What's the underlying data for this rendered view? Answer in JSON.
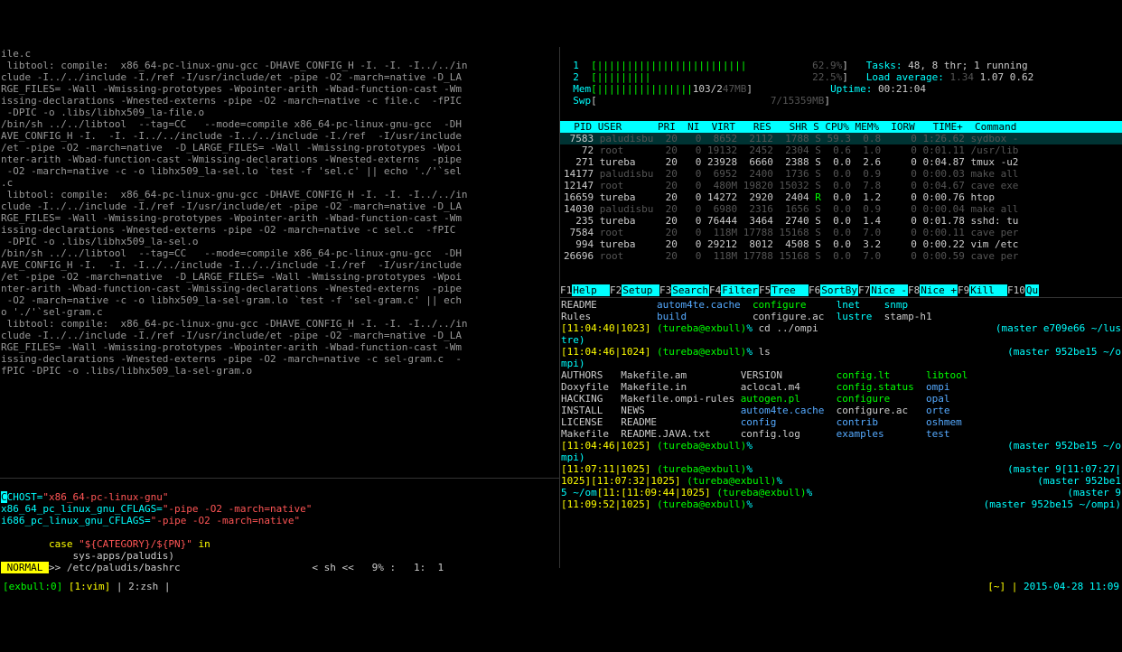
{
  "compile_output": "ile.c\n libtool: compile:  x86_64-pc-linux-gnu-gcc -DHAVE_CONFIG_H -I. -I. -I../../in\nclude -I../../include -I./ref -I/usr/include/et -pipe -O2 -march=native -D_LA\nRGE_FILES= -Wall -Wmissing-prototypes -Wpointer-arith -Wbad-function-cast -Wm\nissing-declarations -Wnested-externs -pipe -O2 -march=native -c file.c  -fPIC\n -DPIC -o .libs/libhx509_la-file.o\n/bin/sh ../../libtool  --tag=CC   --mode=compile x86_64-pc-linux-gnu-gcc  -DH\nAVE_CONFIG_H -I.  -I. -I../../include -I../../include -I./ref  -I/usr/include\n/et -pipe -O2 -march=native  -D_LARGE_FILES= -Wall -Wmissing-prototypes -Wpoi\nnter-arith -Wbad-function-cast -Wmissing-declarations -Wnested-externs  -pipe\n -O2 -march=native -c -o libhx509_la-sel.lo `test -f 'sel.c' || echo './'`sel\n.c\n libtool: compile:  x86_64-pc-linux-gnu-gcc -DHAVE_CONFIG_H -I. -I. -I../../in\nclude -I../../include -I./ref -I/usr/include/et -pipe -O2 -march=native -D_LA\nRGE_FILES= -Wall -Wmissing-prototypes -Wpointer-arith -Wbad-function-cast -Wm\nissing-declarations -Wnested-externs -pipe -O2 -march=native -c sel.c  -fPIC\n -DPIC -o .libs/libhx509_la-sel.o\n/bin/sh ../../libtool  --tag=CC   --mode=compile x86_64-pc-linux-gnu-gcc  -DH\nAVE_CONFIG_H -I.  -I. -I../../include -I../../include -I./ref  -I/usr/include\n/et -pipe -O2 -march=native  -D_LARGE_FILES= -Wall -Wmissing-prototypes -Wpoi\nnter-arith -Wbad-function-cast -Wmissing-declarations -Wnested-externs  -pipe\n -O2 -march=native -c -o libhx509_la-sel-gram.lo `test -f 'sel-gram.c' || ech\no './'`sel-gram.c\n libtool: compile:  x86_64-pc-linux-gnu-gcc -DHAVE_CONFIG_H -I. -I. -I../../in\nclude -I../../include -I./ref -I/usr/include/et -pipe -O2 -march=native -D_LA\nRGE_FILES= -Wall -Wmissing-prototypes -Wpointer-arith -Wbad-function-cast -Wm\nissing-declarations -Wnested-externs -pipe -O2 -march=native -c sel-gram.c  -\nfPIC -DPIC -o .libs/libhx509_la-sel-gram.o",
  "editor": {
    "line1_key": "CHOST=",
    "line1_val": "\"x86_64-pc-linux-gnu\"",
    "line2_key": "x86_64_pc_linux_gnu_CFLAGS=",
    "line2_val": "\"-pipe -O2 -march=native\"",
    "line3_key": "i686_pc_linux_gnu_CFLAGS=",
    "line3_val": "\"-pipe -O2 -march=native\"",
    "case1": "        case ",
    "case1_val": "\"${CATEGORY}/${PN}\"",
    "case1_in": " in",
    "case2": "            sys-apps/paludis)",
    "status_mode": " NORMAL ",
    "status_file": ">> /etc/paludis/bashrc",
    "status_right": "< sh <<   9% :   1:  1 "
  },
  "htop": {
    "cpu1_label": "  1  ",
    "cpu1_bar": "[|||||||||||||||||||||||||           ",
    "cpu1_pct": "62.9%",
    "cpu1_end": "]",
    "cpu2_label": "  2  ",
    "cpu2_bar": "[|||||||||                           ",
    "cpu2_pct": "22.5%",
    "cpu2_end": "]",
    "mem_label": "  Mem",
    "mem_bar": "[||||||||||||||||",
    "mem_val": "103/2",
    "mem_total": "47MB",
    "mem_end": "]",
    "swp_label": "  Swp",
    "swp_bar": "[                             ",
    "swp_val": "7/15359MB",
    "swp_end": "]",
    "tasks_lbl": "Tasks: ",
    "tasks_val": "48, 8 thr; 1 running",
    "load_lbl": "Load average: ",
    "load_val1": "1.34",
    "load_val2": " 1.07 0.62",
    "uptime_lbl": "Uptime: ",
    "uptime_val": "00:21:04",
    "header": "  PID USER      PRI  NI  VIRT   RES   SHR S CPU% MEM%  IORW   TIME+  Command ",
    "rows": [
      {
        "hi": true,
        "pid": " 7583",
        "user": " paludisbu",
        "pri": "  20",
        "ni": "   0",
        "virt": "  8652",
        "res": "  2112",
        "shr": "  1788 ",
        "s": "S",
        "cpu": " 59.3",
        "mem": "  0.8",
        "io": "     0",
        "time": " 1:26.62 ",
        "cmd": "sydbox -"
      },
      {
        "pid": "   72",
        "user": " root     ",
        "pri": "  20",
        "ni": "   0",
        "virt": " 19132",
        "res": "  2452",
        "shr": "  2304 ",
        "s": "S",
        "cpu": "  0.6",
        "mem": "  1.0",
        "io": "     0",
        "time": " 0:01.11 ",
        "cmd": "/usr/lib"
      },
      {
        "pid": "  271",
        "user": " tureba   ",
        "pri": "  20",
        "ni": "   0",
        "virt": " 23928",
        "res": "  6660",
        "shr": "  2388 ",
        "s": "S",
        "cpu": "  0.0",
        "mem": "  2.6",
        "io": "     0",
        "time": " 0:04.87 ",
        "cmd": "tmux -u2"
      },
      {
        "pid": "14177",
        "user": " paludisbu",
        "pri": "  20",
        "ni": "   0",
        "virt": "  6952",
        "res": "  2400",
        "shr": "  1736 ",
        "s": "S",
        "cpu": "  0.0",
        "mem": "  0.9",
        "io": "     0",
        "time": " 0:00.03 ",
        "cmd": "make all"
      },
      {
        "pid": "12147",
        "user": " root     ",
        "pri": "  20",
        "ni": "   0",
        "virt": "  480M",
        "res": " 19820",
        "shr": " 15032 ",
        "s": "S",
        "cpu": "  0.0",
        "mem": "  7.8",
        "io": "     0",
        "time": " 0:04.67 ",
        "cmd": "cave exe"
      },
      {
        "pid": "16659",
        "user": " tureba   ",
        "pri": "  20",
        "ni": "   0",
        "virt": " 14272",
        "res": "  2920",
        "shr": "  2404 ",
        "s": "R",
        "cpu": "  0.0",
        "mem": "  1.2",
        "io": "     0",
        "time": " 0:00.76 ",
        "cmd": "htop"
      },
      {
        "pid": "14030",
        "user": " paludisbu",
        "pri": "  20",
        "ni": "   0",
        "virt": "  6980",
        "res": "  2316",
        "shr": "  1656 ",
        "s": "S",
        "cpu": "  0.0",
        "mem": "  0.9",
        "io": "     0",
        "time": " 0:00.04 ",
        "cmd": "make all"
      },
      {
        "pid": "  235",
        "user": " tureba   ",
        "pri": "  20",
        "ni": "   0",
        "virt": " 76444",
        "res": "  3464",
        "shr": "  2740 ",
        "s": "S",
        "cpu": "  0.0",
        "mem": "  1.4",
        "io": "     0",
        "time": " 0:01.78 ",
        "cmd": "sshd: tu"
      },
      {
        "pid": " 7584",
        "user": " root     ",
        "pri": "  20",
        "ni": "   0",
        "virt": "  118M",
        "res": " 17788",
        "shr": " 15168 ",
        "s": "S",
        "cpu": "  0.0",
        "mem": "  7.0",
        "io": "     0",
        "time": " 0:00.11 ",
        "cmd": "cave per"
      },
      {
        "pid": "  994",
        "user": " tureba   ",
        "pri": "  20",
        "ni": "   0",
        "virt": " 29212",
        "res": "  8012",
        "shr": "  4508 ",
        "s": "S",
        "cpu": "  0.0",
        "mem": "  3.2",
        "io": "     0",
        "time": " 0:00.22 ",
        "cmd": "vim /etc"
      },
      {
        "pid": "26696",
        "user": " root     ",
        "pri": "  20",
        "ni": "   0",
        "virt": "  118M",
        "res": " 17788",
        "shr": " 15168 ",
        "s": "S",
        "cpu": "  0.0",
        "mem": "  7.0",
        "io": "     0",
        "time": " 0:00.59 ",
        "cmd": "cave per"
      }
    ],
    "fn": [
      {
        "k": "F1",
        "v": "Help  "
      },
      {
        "k": "F2",
        "v": "Setup "
      },
      {
        "k": "F3",
        "v": "Search"
      },
      {
        "k": "F4",
        "v": "Filter"
      },
      {
        "k": "F5",
        "v": "Tree  "
      },
      {
        "k": "F6",
        "v": "SortBy"
      },
      {
        "k": "F7",
        "v": "Nice -"
      },
      {
        "k": "F8",
        "v": "Nice +"
      },
      {
        "k": "F9",
        "v": "Kill  "
      },
      {
        "k": "F10",
        "v": "Qu"
      }
    ]
  },
  "shell": {
    "ls1": [
      {
        "c": "wh",
        "t": "README          "
      },
      {
        "c": "bl",
        "t": "autom4te.cache  "
      },
      {
        "c": "gr",
        "t": "configure     "
      },
      {
        "c": "cy",
        "t": "lnet    "
      },
      {
        "c": "cy",
        "t": "snmp"
      }
    ],
    "ls1b": [
      {
        "c": "wh",
        "t": "Rules           "
      },
      {
        "c": "bl",
        "t": "build           "
      },
      {
        "c": "wh",
        "t": "configure.ac  "
      },
      {
        "c": "cy",
        "t": "lustre  "
      },
      {
        "c": "wh",
        "t": "stamp-h1"
      }
    ],
    "p1_time": "[11:04:40|1023]",
    "p1_user": " (tureba@exbull)",
    "p1_pct": "%",
    "p1_cmd": " cd ../ompi",
    "p1_right": "(master e709e66 ~/lus",
    "p1_cont": "tre)",
    "p2_time": "[11:04:46|1024]",
    "p2_user": " (tureba@exbull)",
    "p2_pct": "%",
    "p2_cmd": " ls",
    "p2_right": "(master 952be15 ~/o",
    "p2_cont": "mpi)",
    "ls2": [
      [
        "AUTHORS   ",
        "Makefile.am         ",
        "VERSION         ",
        "config.lt      ",
        "libtool"
      ],
      [
        "Doxyfile  ",
        "Makefile.in         ",
        "aclocal.m4      ",
        "config.status  ",
        "ompi"
      ],
      [
        "HACKING   ",
        "Makefile.ompi-rules ",
        "autogen.pl      ",
        "configure      ",
        "opal"
      ],
      [
        "INSTALL   ",
        "NEWS                ",
        "autom4te.cache  ",
        "configure.ac   ",
        "orte"
      ],
      [
        "LICENSE   ",
        "README              ",
        "config          ",
        "contrib        ",
        "oshmem"
      ],
      [
        "Makefile  ",
        "README.JAVA.txt     ",
        "config.log      ",
        "examples       ",
        "test"
      ]
    ],
    "ls2_colors": [
      [
        "wh",
        "wh",
        "wh",
        "gr",
        "gr"
      ],
      [
        "wh",
        "wh",
        "wh",
        "gr",
        "bl"
      ],
      [
        "wh",
        "wh",
        "gr",
        "gr",
        "bl"
      ],
      [
        "wh",
        "wh",
        "bl",
        "wh",
        "bl"
      ],
      [
        "wh",
        "wh",
        "bl",
        "bl",
        "bl"
      ],
      [
        "wh",
        "wh",
        "wh",
        "bl",
        "bl"
      ]
    ],
    "p3_time": "[11:04:46|1025]",
    "p3_user": " (tureba@exbull)",
    "p3_pct": "%",
    "p3_right": "(master 952be15 ~/o",
    "p3_cont": "mpi)",
    "p4_time": "[11:07:11|1025]",
    "p4_user": " (tureba@exbull)",
    "p4_pct": "%",
    "p4_right": "(master 9[11:07:27|",
    "p5a": "1025]",
    "p5_time": "[11:07:32|1025]",
    "p5_user": " (tureba@exbull)",
    "p5_pct": "%",
    "p5_right": "(master 952be1",
    "p6a": "5 ~/om",
    "p6_time": "[11:[11:09:44|1025]",
    "p6_user": " (tureba@exbull)",
    "p6_pct": "%",
    "p6_right": "(master 9",
    "p7_time": "[11:09:52|1025]",
    "p7_user": " (tureba@exbull)",
    "p7_pct": "%",
    "p7_right": "(master 952be15 ~/ompi)"
  },
  "status": {
    "left_host": "[exbull:0]",
    "left_win1": " [1:vim]",
    "left_sep": " | ",
    "left_win2": "2:zsh",
    "left_end": " |",
    "right_path": "[~] |",
    "right_time": " 2015-04-28 11:09"
  }
}
